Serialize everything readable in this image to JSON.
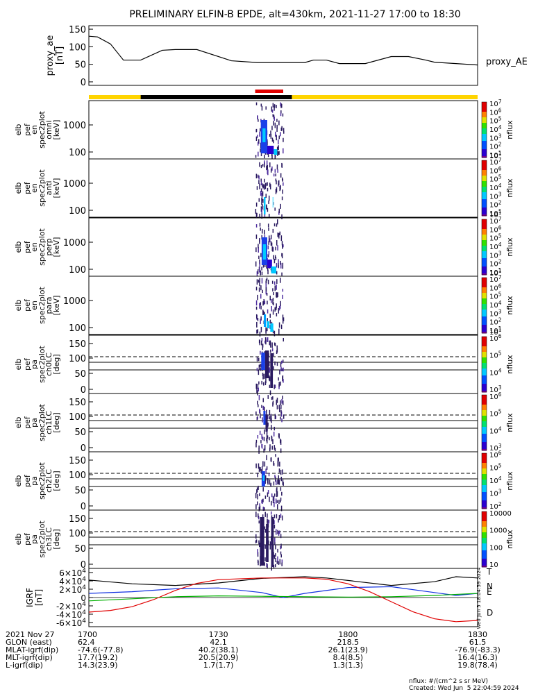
{
  "title": "PRELIMINARY ELFIN-B EPDE, alt=430km, 2021-11-27 17:00 to 18:30",
  "colors": {
    "yellow_bar": "#ffd400",
    "black_bar": "#000000",
    "red_bar": "#e00000",
    "bx": "#000000",
    "by": "#1030e0",
    "bz_green": "#00b000",
    "bz_red": "#e00000"
  },
  "chart_data": [
    {
      "type": "line",
      "panel": "proxy_ae",
      "ylabel": "proxy_ae\n[nT]",
      "legend": "proxy_AE",
      "ylim": [
        -10,
        160
      ],
      "yticks": [
        "150",
        "100",
        "50",
        "0"
      ],
      "ytick_values": [
        150,
        100,
        50,
        0
      ],
      "x_minutes": [
        0,
        2,
        5,
        8,
        12,
        17,
        20,
        25,
        33,
        39,
        45,
        50,
        52,
        55,
        58,
        64,
        70,
        74,
        78,
        80,
        85,
        90
      ],
      "values": [
        130,
        128,
        108,
        62,
        62,
        90,
        92,
        92,
        60,
        55,
        55,
        55,
        62,
        62,
        52,
        52,
        72,
        72,
        62,
        56,
        52,
        48
      ]
    },
    {
      "type": "heatmap",
      "panel": "spec_omni",
      "ylabel": [
        "elb",
        "pef",
        "en",
        "spec2plot",
        "omni",
        "[keV]"
      ],
      "yticks": [
        "1000",
        "100"
      ],
      "colorbar_ticks": [
        "10^7",
        "10^6",
        "10^5",
        "10^4",
        "10^3",
        "10^2",
        "10^1"
      ],
      "colorbar_label": "nflux"
    },
    {
      "type": "heatmap",
      "panel": "spec_anti",
      "ylabel": [
        "elb",
        "pef",
        "en",
        "spec2plot",
        "anti",
        "[keV]"
      ],
      "yticks": [
        "1000",
        "100"
      ],
      "colorbar_ticks": [
        "10^7",
        "10^6",
        "10^5",
        "10^4",
        "10^3",
        "10^2",
        "10^1"
      ],
      "colorbar_label": "nflux"
    },
    {
      "type": "heatmap",
      "panel": "spec_perp",
      "ylabel": [
        "elb",
        "pef",
        "en",
        "spec2plot",
        "perp",
        "[keV]"
      ],
      "yticks": [
        "1000",
        "100"
      ],
      "colorbar_ticks": [
        "10^7",
        "10^6",
        "10^5",
        "10^4",
        "10^3",
        "10^2",
        "10^1"
      ],
      "colorbar_label": "nflux"
    },
    {
      "type": "heatmap",
      "panel": "spec_para",
      "ylabel": [
        "elb",
        "pef",
        "en",
        "spec2plot",
        "para",
        "[keV]"
      ],
      "yticks": [
        "1000",
        "100"
      ],
      "colorbar_ticks": [
        "10^7",
        "10^6",
        "10^5",
        "10^4",
        "10^3",
        "10^2",
        "10^1"
      ],
      "colorbar_label": "nflux"
    },
    {
      "type": "heatmap",
      "panel": "pa_ch0",
      "ylabel": [
        "elb",
        "pef",
        "pa",
        "spec2plot",
        "ch0LC",
        "[deg]"
      ],
      "yticks": [
        "150",
        "100",
        "50",
        "0"
      ],
      "colorbar_ticks": [
        "10^6",
        "10^5",
        "10^4",
        "10^3"
      ],
      "colorbar_label": "nflux"
    },
    {
      "type": "heatmap",
      "panel": "pa_ch1",
      "ylabel": [
        "elb",
        "pef",
        "pa",
        "spec2plot",
        "ch1LC",
        "[deg]"
      ],
      "yticks": [
        "150",
        "100",
        "50",
        "0"
      ],
      "colorbar_ticks": [
        "10^6",
        "10^5",
        "10^4",
        "10^3"
      ],
      "colorbar_label": "nflux"
    },
    {
      "type": "heatmap",
      "panel": "pa_ch2",
      "ylabel": [
        "elb",
        "pef",
        "pa",
        "spec2plot",
        "ch2LC",
        "[deg]"
      ],
      "yticks": [
        "150",
        "100",
        "50",
        "0"
      ],
      "colorbar_ticks": [
        "10^6",
        "10^5",
        "10^4",
        "10^3",
        "10^2"
      ],
      "colorbar_label": "nflux"
    },
    {
      "type": "heatmap",
      "panel": "pa_ch3",
      "ylabel": [
        "elb",
        "pef",
        "pa",
        "spec2plot",
        "ch3LC",
        "[deg]"
      ],
      "yticks": [
        "150",
        "100",
        "50",
        "0"
      ],
      "colorbar_ticks": [
        "10000",
        "1000",
        "100",
        "10"
      ],
      "colorbar_label": "nflux"
    },
    {
      "type": "line",
      "panel": "igrf",
      "ylabel": [
        "IGRF",
        "[nT]"
      ],
      "ylim": [
        -70000,
        70000
      ],
      "yticks": [
        "6×10^4",
        "4×10^4",
        "2×10^4",
        "0",
        "-2×10^4",
        "-4×10^4",
        "-6×10^4"
      ],
      "ytick_values": [
        60000,
        40000,
        20000,
        0,
        -20000,
        -40000,
        -60000
      ],
      "series": [
        {
          "name": "T",
          "x_minutes": [
            0,
            10,
            20,
            30,
            40,
            50,
            55,
            60,
            70,
            80,
            85,
            90
          ],
          "values": [
            42000,
            33000,
            29000,
            35000,
            46000,
            50000,
            47000,
            41000,
            29000,
            38000,
            50000,
            47000
          ]
        },
        {
          "name": "N",
          "x_minutes": [
            0,
            10,
            20,
            30,
            40,
            45,
            50,
            60,
            70,
            80,
            85,
            90
          ],
          "values": [
            10000,
            14000,
            21000,
            23000,
            12000,
            0,
            10000,
            24000,
            26000,
            12000,
            5000,
            10000
          ]
        },
        {
          "name": "E",
          "x_minutes": [
            0,
            10,
            20,
            30,
            40,
            50,
            60,
            70,
            80,
            90
          ],
          "values": [
            -8000,
            -3000,
            2000,
            4000,
            3000,
            2000,
            1000,
            2000,
            5000,
            10000
          ]
        },
        {
          "name": "D",
          "x_minutes": [
            0,
            5,
            10,
            15,
            20,
            25,
            30,
            40,
            50,
            55,
            60,
            65,
            70,
            75,
            80,
            85,
            90
          ],
          "values": [
            -35000,
            -31000,
            -22000,
            -5000,
            17000,
            34000,
            43000,
            47000,
            47000,
            44000,
            33000,
            14000,
            -10000,
            -34000,
            -51000,
            -58000,
            -55000
          ]
        }
      ]
    }
  ],
  "colorbar_mini_labels": [
    "10^1",
    "10^1",
    "10^1",
    "10^1"
  ],
  "timestamp_vertical": "Wed Jun  5 18:04:59 2024",
  "footer": {
    "rows": [
      {
        "label": "2021 Nov 27",
        "values": [
          "1700",
          "1730",
          "1800",
          "1830"
        ]
      },
      {
        "label": "GLON (east)",
        "values": [
          "62.4",
          "42.1",
          "218.5",
          "61.5"
        ]
      },
      {
        "label": "MLAT-igrf(dip)",
        "values": [
          "-74.6(-77.8)",
          "40.2(38.1)",
          "26.1(23.9)",
          "-76.9(-83.3)"
        ]
      },
      {
        "label": "MLT-igrf(dip)",
        "values": [
          "17.7(19.2)",
          "20.5(20.9)",
          "8.4(8.5)",
          "16.4(16.3)"
        ]
      },
      {
        "label": "L-igrf(dip)",
        "values": [
          "14.3(23.9)",
          "1.7(1.7)",
          "1.3(1.3)",
          "19.8(78.4)"
        ]
      }
    ],
    "units_note": "nflux: #/(cm^2 s sr MeV)",
    "created": "Created: Wed Jun  5 22:04:59 2024"
  }
}
